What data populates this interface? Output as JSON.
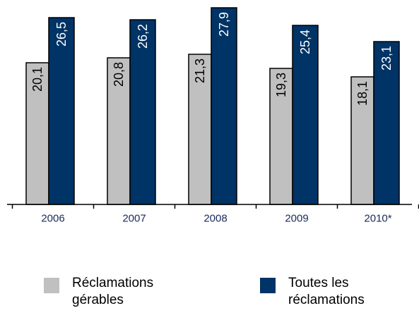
{
  "chart_data": {
    "type": "bar",
    "categories": [
      "2006",
      "2007",
      "2008",
      "2009",
      "2010*"
    ],
    "series": [
      {
        "name": "Réclamations gérables",
        "color": "#c0c0c0",
        "values": [
          20.1,
          20.8,
          21.3,
          19.3,
          18.1
        ],
        "value_labels": [
          "20,1",
          "20,8",
          "21,3",
          "19,3",
          "18,1"
        ]
      },
      {
        "name": "Toutes les réclamations",
        "color": "#003366",
        "values": [
          26.5,
          26.2,
          27.9,
          25.4,
          23.1
        ],
        "value_labels": [
          "26,5",
          "26,2",
          "27,9",
          "25,4",
          "23,1"
        ]
      }
    ],
    "ylim": [
      0,
      28
    ]
  }
}
